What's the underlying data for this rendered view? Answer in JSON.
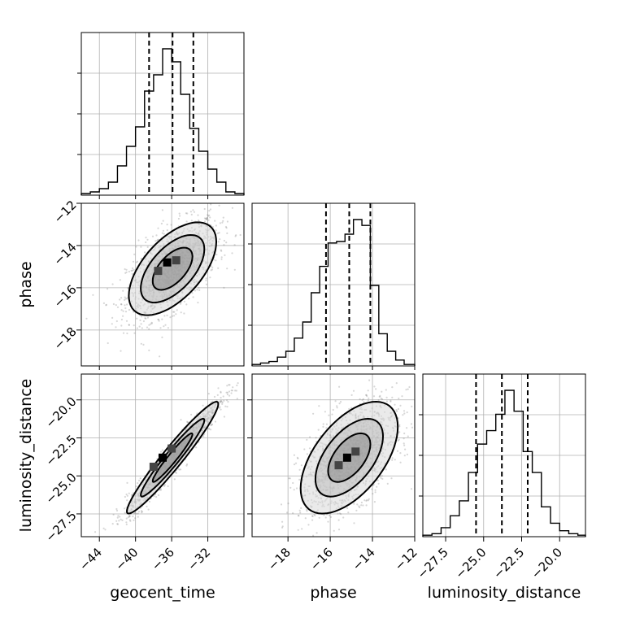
{
  "chart_data": {
    "type": "corner",
    "parameters": [
      "geocent_time",
      "phase",
      "luminosity_distance"
    ],
    "axis_labels": [
      "geocent_time",
      "phase",
      "luminosity_distance"
    ],
    "ranges": {
      "geocent_time": [
        -46.0,
        -28.0
      ],
      "phase": [
        -19.7,
        -12.0
      ],
      "luminosity_distance": [
        -29.0,
        -18.3
      ]
    },
    "ticks": {
      "geocent_time": [
        "−44",
        "−40",
        "−36",
        "−32"
      ],
      "phase": [
        "−18",
        "−16",
        "−14",
        "−12"
      ],
      "phase_y": [
        "−12",
        "−14",
        "−16",
        "−18"
      ],
      "luminosity_distance": [
        "−27.5",
        "−25.0",
        "−22.5",
        "−20.0"
      ],
      "luminosity_distance_y": [
        "−20.0",
        "−22.5",
        "−25.0",
        "−27.5"
      ]
    },
    "tick_values": {
      "geocent_time": [
        -44,
        -40,
        -36,
        -32
      ],
      "phase": [
        -18,
        -16,
        -14,
        -12
      ],
      "luminosity_distance": [
        -27.5,
        -25.0,
        -22.5,
        -20.0
      ]
    },
    "histograms": [
      {
        "parameter": "geocent_time",
        "edges": [
          -46,
          -45,
          -44,
          -43,
          -42,
          -41,
          -40,
          -39,
          -38,
          -37,
          -36,
          -35,
          -34,
          -33,
          -32,
          -31,
          -30,
          -29,
          -28
        ],
        "counts": [
          1,
          2,
          4,
          8,
          18,
          30,
          42,
          64,
          74,
          90,
          82,
          62,
          41,
          27,
          16,
          8,
          2,
          1
        ],
        "quantiles": [
          -38.5,
          -35.9,
          -33.6
        ]
      },
      {
        "parameter": "phase",
        "edges": [
          -19.7,
          -19.3,
          -18.9,
          -18.5,
          -18.1,
          -17.7,
          -17.3,
          -16.9,
          -16.5,
          -16.1,
          -15.7,
          -15.3,
          -14.9,
          -14.5,
          -14.1,
          -13.7,
          -13.3,
          -12.9,
          -12.5,
          -12.0
        ],
        "counts": [
          1,
          2,
          3,
          6,
          10,
          19,
          30,
          50,
          68,
          84,
          85,
          90,
          100,
          96,
          55,
          22,
          10,
          4,
          1
        ],
        "quantiles": [
          -16.2,
          -15.1,
          -14.1
        ]
      },
      {
        "parameter": "luminosity_distance",
        "edges": [
          -29.0,
          -28.4,
          -27.8,
          -27.2,
          -26.6,
          -26.0,
          -25.4,
          -24.8,
          -24.2,
          -23.6,
          -23.0,
          -22.4,
          -21.8,
          -21.2,
          -20.6,
          -20.0,
          -19.4,
          -18.8,
          -18.3
        ],
        "counts": [
          1,
          2,
          6,
          14,
          24,
          43,
          62,
          71,
          82,
          98,
          84,
          57,
          43,
          20,
          9,
          4,
          2,
          1
        ],
        "quantiles": [
          -25.5,
          -23.8,
          -22.1
        ]
      }
    ],
    "pairs": [
      {
        "x": "geocent_time",
        "y": "phase",
        "mean": [
          -35.9,
          -15.1
        ],
        "sd": [
          2.2,
          1.0
        ],
        "corr": 0.58,
        "contour_scale": [
          1.0,
          1.6,
          2.2
        ],
        "peak_cells": [
          [
            -36.5,
            -14.8
          ],
          [
            -37.5,
            -15.2
          ],
          [
            -35.5,
            -14.7
          ]
        ]
      },
      {
        "x": "geocent_time",
        "y": "luminosity_distance",
        "mean": [
          -35.9,
          -23.8
        ],
        "sd": [
          2.2,
          1.6
        ],
        "corr": 0.96,
        "contour_scale": [
          1.0,
          1.6,
          2.3
        ],
        "peak_cells": [
          [
            -37.0,
            -23.8
          ],
          [
            -36.0,
            -23.2
          ],
          [
            -38.0,
            -24.4
          ]
        ]
      },
      {
        "x": "phase",
        "y": "luminosity_distance",
        "mean": [
          -15.1,
          -23.8
        ],
        "sd": [
          1.0,
          1.6
        ],
        "corr": 0.55,
        "contour_scale": [
          1.0,
          1.6,
          2.3
        ],
        "peak_cells": [
          [
            -15.2,
            -23.8
          ],
          [
            -14.8,
            -23.4
          ],
          [
            -15.6,
            -24.3
          ]
        ]
      }
    ]
  }
}
